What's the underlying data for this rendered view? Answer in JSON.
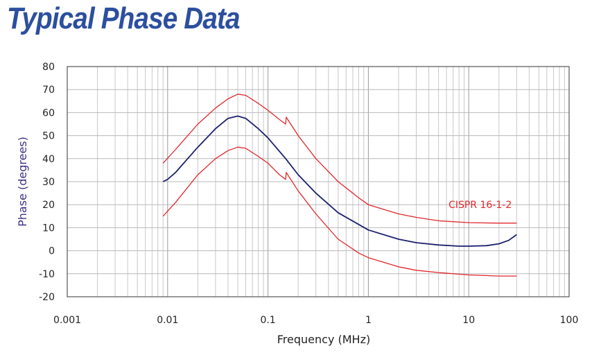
{
  "title": "Typical Phase Data",
  "chart_data": {
    "type": "line",
    "title": "Typical Phase Data",
    "xlabel": "Frequency (MHz)",
    "ylabel": "Phase (degrees)",
    "x_scale": "log",
    "xlim": [
      0.001,
      100
    ],
    "ylim": [
      -20,
      80
    ],
    "x_ticks": [
      0.001,
      0.01,
      0.1,
      1,
      10,
      100
    ],
    "x_tick_labels": [
      "0.001",
      "0.01",
      "0.1",
      "1",
      "10",
      "100"
    ],
    "y_ticks": [
      -20,
      -10,
      0,
      10,
      20,
      30,
      40,
      50,
      60,
      70,
      80
    ],
    "y_tick_labels": [
      "-20",
      "-10",
      "0",
      "10",
      "20",
      "30",
      "40",
      "50",
      "60",
      "70",
      "80"
    ],
    "grid": true,
    "annotations": [
      {
        "text": "CISPR 16-1-2",
        "x": 13,
        "y": 18.5
      }
    ],
    "series": [
      {
        "role": "upper-limit",
        "color": "#e0262b",
        "points": [
          [
            0.009,
            38
          ],
          [
            0.012,
            44
          ],
          [
            0.02,
            55
          ],
          [
            0.03,
            62
          ],
          [
            0.04,
            66
          ],
          [
            0.05,
            68
          ],
          [
            0.06,
            67.5
          ],
          [
            0.08,
            64
          ],
          [
            0.1,
            61
          ],
          [
            0.13,
            57
          ],
          [
            0.15,
            55
          ],
          [
            0.152,
            58
          ],
          [
            0.2,
            50
          ],
          [
            0.3,
            40
          ],
          [
            0.5,
            30
          ],
          [
            0.8,
            23
          ],
          [
            1,
            20
          ],
          [
            2,
            16
          ],
          [
            3,
            14.5
          ],
          [
            5,
            13
          ],
          [
            10,
            12.2
          ],
          [
            20,
            12
          ],
          [
            30,
            12
          ]
        ]
      },
      {
        "role": "typical",
        "color": "#1b1f6e",
        "points": [
          [
            0.009,
            30
          ],
          [
            0.01,
            31
          ],
          [
            0.012,
            34
          ],
          [
            0.02,
            45
          ],
          [
            0.03,
            53
          ],
          [
            0.04,
            57.5
          ],
          [
            0.05,
            58.5
          ],
          [
            0.06,
            57.5
          ],
          [
            0.08,
            53
          ],
          [
            0.1,
            49
          ],
          [
            0.15,
            40
          ],
          [
            0.2,
            33
          ],
          [
            0.3,
            25
          ],
          [
            0.5,
            16.5
          ],
          [
            1,
            9
          ],
          [
            2,
            5
          ],
          [
            3,
            3.5
          ],
          [
            5,
            2.5
          ],
          [
            8,
            2
          ],
          [
            10,
            2
          ],
          [
            15,
            2.2
          ],
          [
            20,
            3
          ],
          [
            25,
            4.5
          ],
          [
            30,
            7
          ]
        ]
      },
      {
        "role": "lower-limit",
        "color": "#e0262b",
        "points": [
          [
            0.009,
            15
          ],
          [
            0.012,
            21
          ],
          [
            0.02,
            33
          ],
          [
            0.03,
            40
          ],
          [
            0.04,
            43.5
          ],
          [
            0.05,
            45
          ],
          [
            0.06,
            44.5
          ],
          [
            0.08,
            41
          ],
          [
            0.1,
            38
          ],
          [
            0.13,
            33
          ],
          [
            0.15,
            31
          ],
          [
            0.152,
            34
          ],
          [
            0.2,
            26
          ],
          [
            0.3,
            16
          ],
          [
            0.5,
            5
          ],
          [
            0.8,
            -1
          ],
          [
            1,
            -3
          ],
          [
            2,
            -7
          ],
          [
            3,
            -8.5
          ],
          [
            5,
            -9.5
          ],
          [
            10,
            -10.5
          ],
          [
            20,
            -11
          ],
          [
            30,
            -11
          ]
        ]
      }
    ]
  }
}
